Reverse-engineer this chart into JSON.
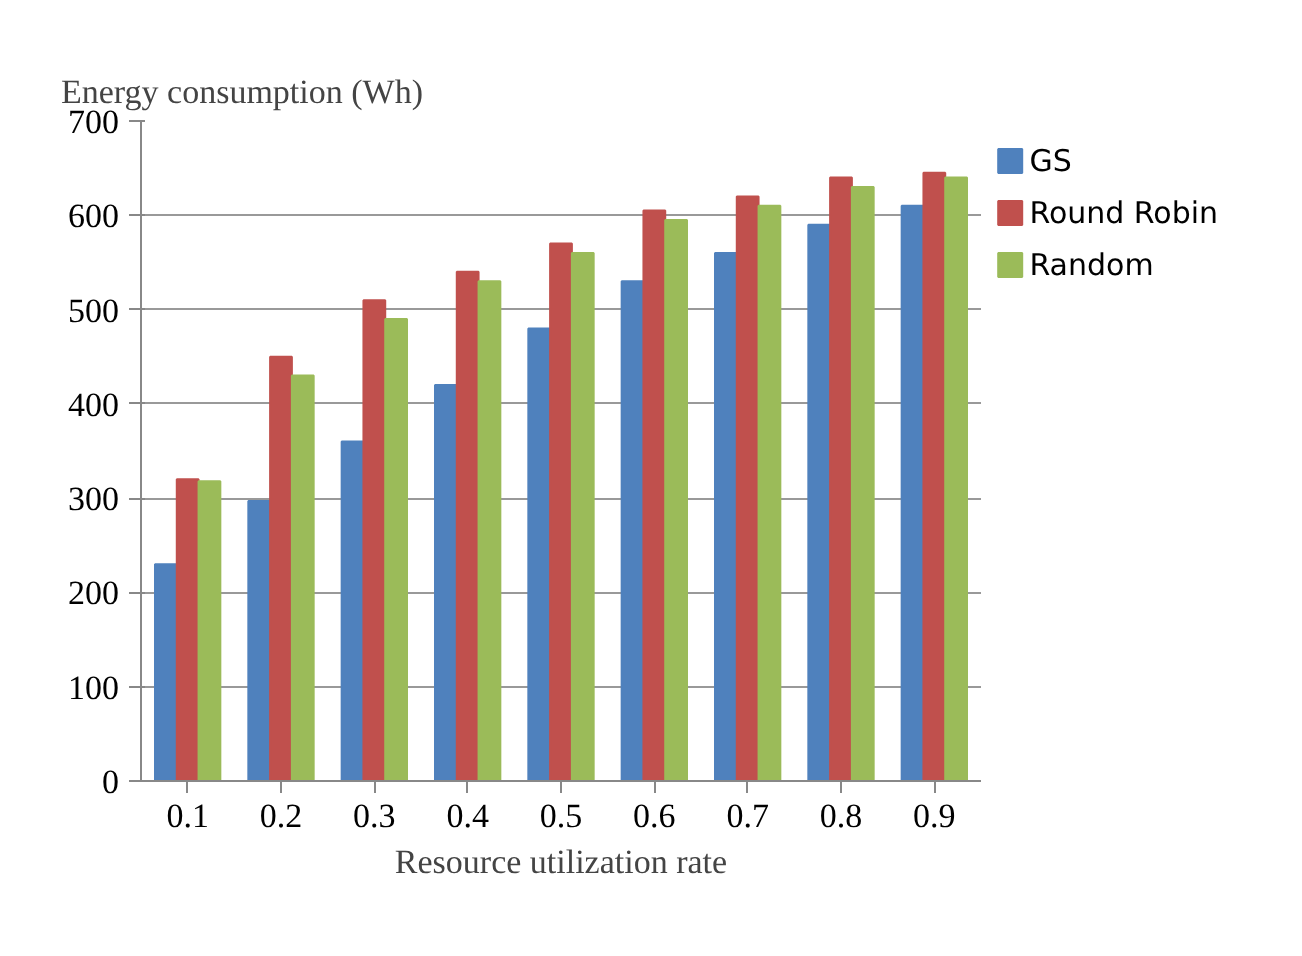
{
  "chart_data": {
    "type": "bar",
    "ylabel": "Energy consumption (Wh)",
    "xlabel": "Resource utilization rate",
    "categories": [
      "0.1",
      "0.2",
      "0.3",
      "0.4",
      "0.5",
      "0.6",
      "0.7",
      "0.8",
      "0.9"
    ],
    "series": [
      {
        "name": "GS",
        "color": "#4f81bd",
        "values": [
          230,
          297,
          360,
          420,
          480,
          530,
          560,
          590,
          610
        ]
      },
      {
        "name": "Round Robin",
        "color": "#c0504d",
        "values": [
          320,
          450,
          510,
          540,
          570,
          605,
          620,
          640,
          645
        ]
      },
      {
        "name": "Random",
        "color": "#9bbb59",
        "values": [
          318,
          430,
          490,
          530,
          560,
          595,
          610,
          630,
          640
        ]
      }
    ],
    "ylim": [
      0,
      700
    ],
    "yticks": [
      0,
      100,
      200,
      300,
      400,
      500,
      600,
      700
    ],
    "grid": "y",
    "legend": "top right"
  }
}
